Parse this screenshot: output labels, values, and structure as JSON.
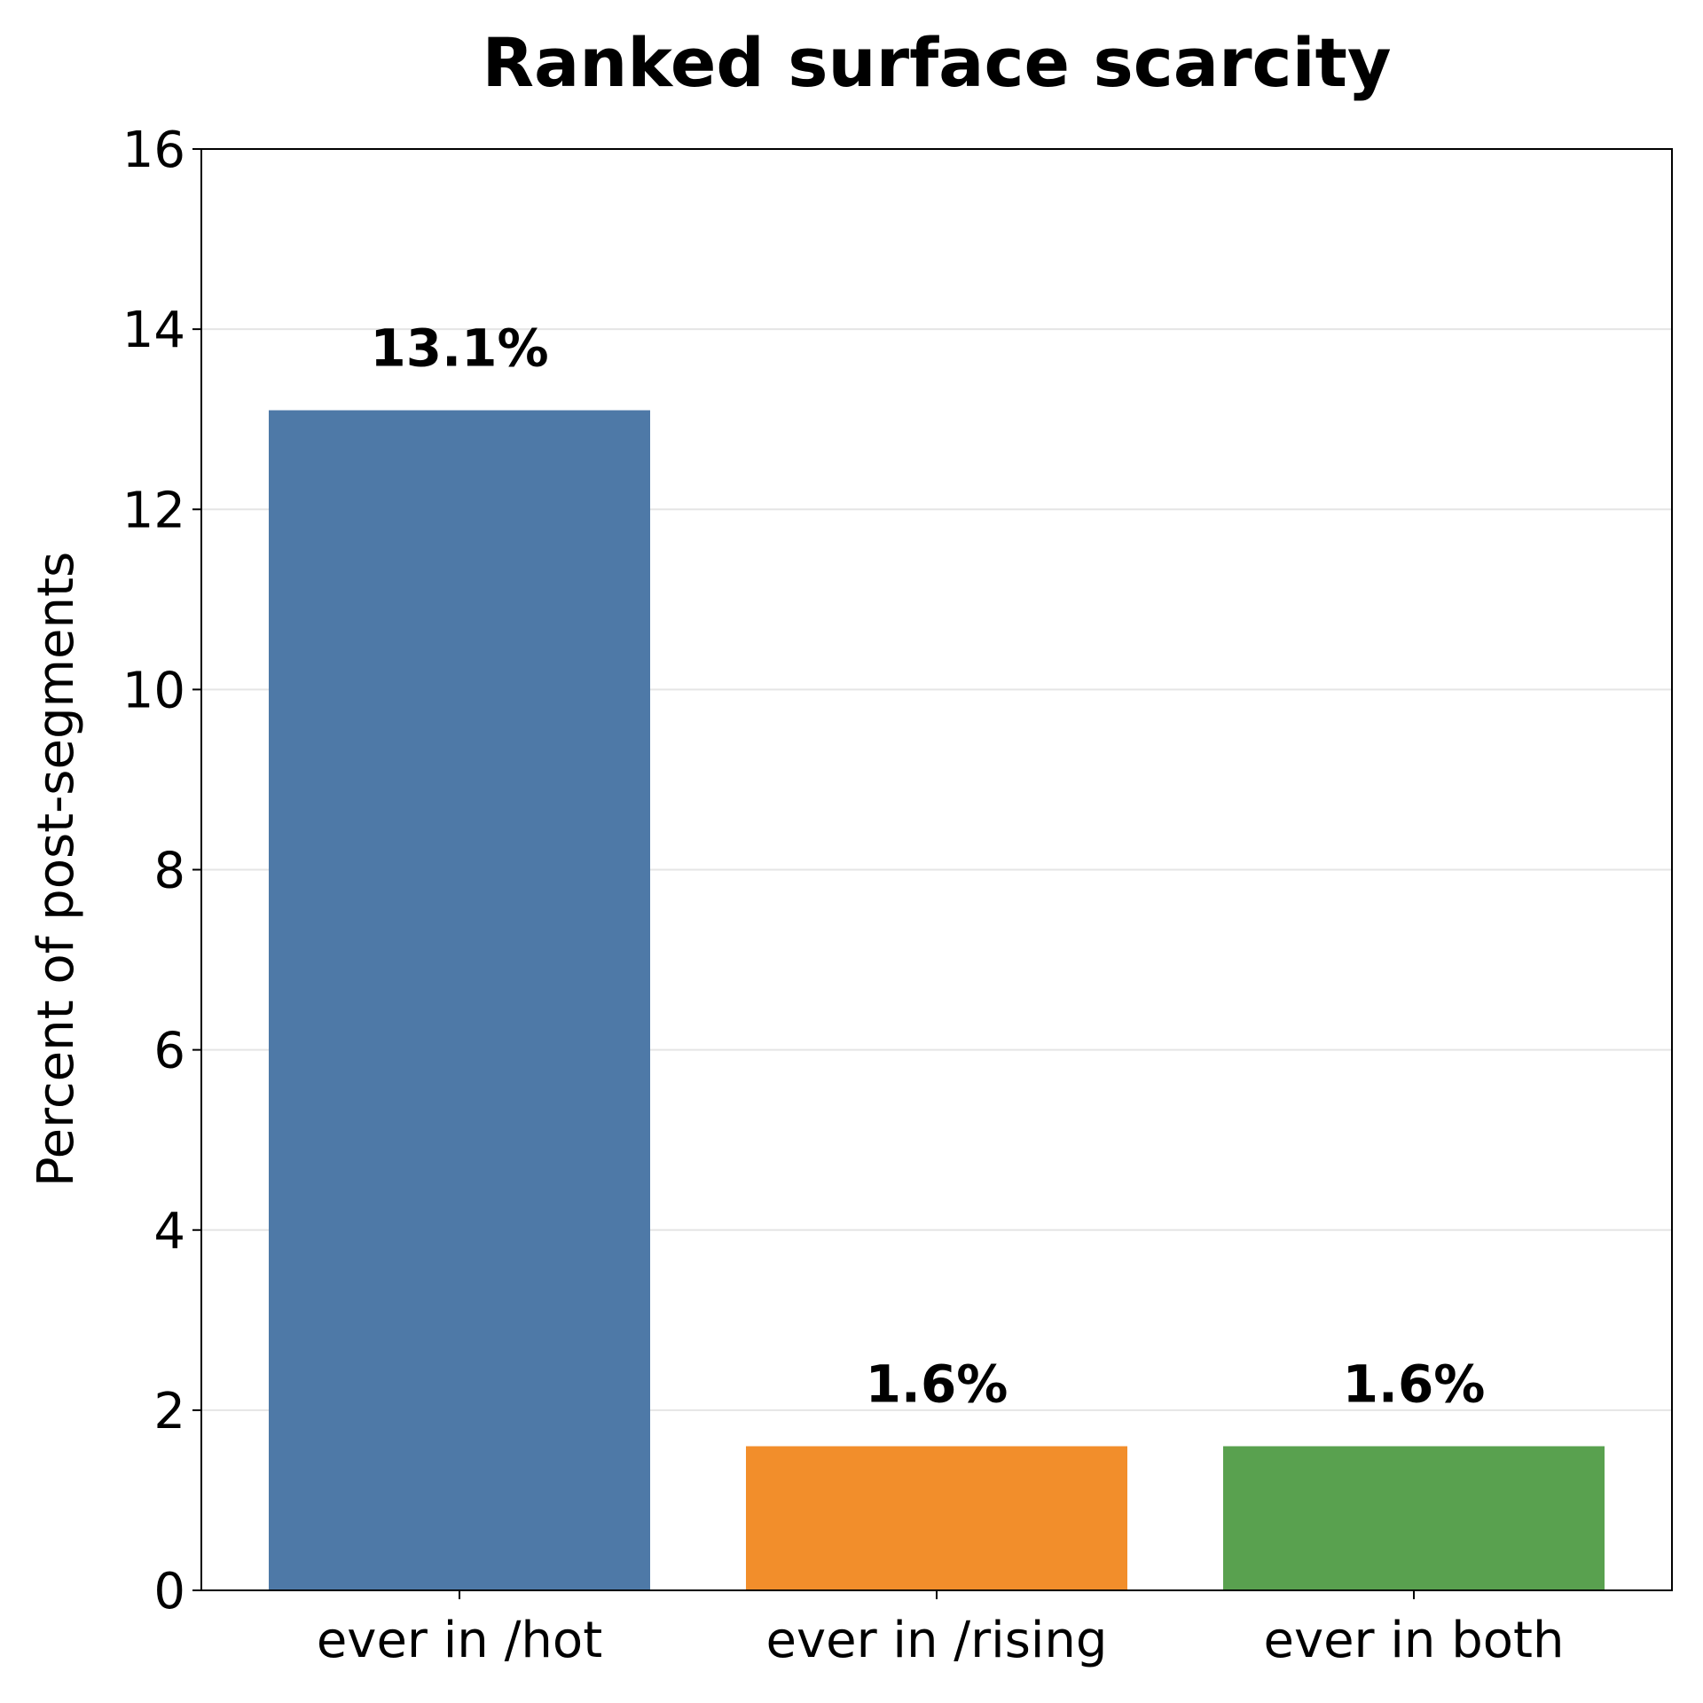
{
  "chart_data": {
    "type": "bar",
    "title": "Ranked surface scarcity",
    "xlabel": "",
    "ylabel": "Percent of post-segments",
    "categories": [
      "ever in /hot",
      "ever in /rising",
      "ever in both"
    ],
    "values": [
      13.1,
      1.6,
      1.6
    ],
    "data_labels": [
      "13.1%",
      "1.6%",
      "1.6%"
    ],
    "colors": [
      "#4e79a7",
      "#f28e2b",
      "#59a14f"
    ],
    "ylim": [
      0,
      16
    ],
    "yticks": [
      0,
      2,
      4,
      6,
      8,
      10,
      12,
      14,
      16
    ],
    "grid": "y",
    "legend": "none"
  }
}
